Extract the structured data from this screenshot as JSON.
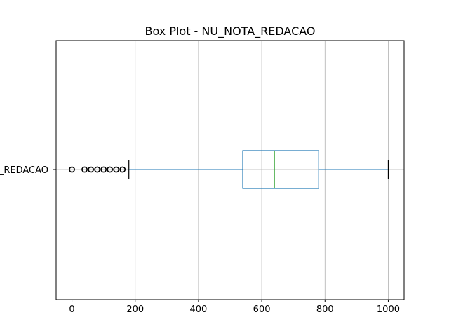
{
  "chart_data": {
    "type": "box",
    "orientation": "horizontal",
    "title": "Box Plot - NU_NOTA_REDACAO",
    "categories": [
      "NU_NOTA_REDACAO"
    ],
    "category_label_visible": "_REDACAO",
    "xlim": [
      -50,
      1050
    ],
    "xticks": [
      0,
      200,
      400,
      600,
      800,
      1000
    ],
    "xtick_labels": [
      "0",
      "200",
      "400",
      "600",
      "800",
      "1000"
    ],
    "grid": true,
    "box": {
      "whisker_low": 180,
      "q1": 540,
      "median": 640,
      "q3": 780,
      "whisker_high": 1000
    },
    "outliers": [
      0,
      40,
      60,
      80,
      100,
      120,
      140,
      160
    ],
    "colors": {
      "box": "#1f77b4",
      "median": "#2ca02c",
      "whisker": "#1f77b4",
      "cap": "#000000",
      "outlier": "#000000",
      "grid": "#b0b0b0"
    }
  }
}
